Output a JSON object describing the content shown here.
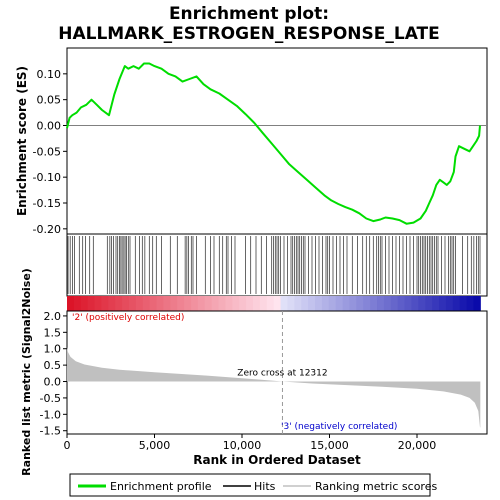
{
  "title_line1": "Enrichment plot:",
  "title_line2": "HALLMARK_ESTROGEN_RESPONSE_LATE",
  "colors": {
    "enrichment": "#00dd00",
    "hits": "#000000",
    "metric_fill": "#c0c0c0",
    "zero_line": "#808080",
    "pos_text": "#dd0000",
    "neg_text": "#0000cc"
  },
  "chart_data": [
    {
      "type": "line",
      "name": "enrichment-profile",
      "ylabel": "Enrichment score (ES)",
      "xlim": [
        0,
        24000
      ],
      "ylim": [
        -0.21,
        0.15
      ],
      "yticks": [
        0.1,
        0.05,
        0.0,
        -0.05,
        -0.1,
        -0.15,
        -0.2
      ],
      "ytick_labels": [
        "0.10",
        "0.05",
        "0.00",
        "-0.05",
        "-0.10",
        "-0.15",
        "-0.20"
      ],
      "grid": false,
      "x": [
        0,
        150,
        300,
        550,
        800,
        1100,
        1400,
        1700,
        2000,
        2400,
        2700,
        3000,
        3300,
        3500,
        3800,
        4100,
        4400,
        4700,
        5000,
        5400,
        5800,
        6200,
        6600,
        7000,
        7400,
        7800,
        8200,
        8700,
        9200,
        9700,
        10200,
        10700,
        11200,
        11700,
        12200,
        12700,
        13200,
        13700,
        14200,
        14700,
        15100,
        15500,
        15900,
        16300,
        16700,
        17100,
        17500,
        17900,
        18200,
        18600,
        19000,
        19400,
        19800,
        20200,
        20500,
        20700,
        20900,
        21100,
        21300,
        21500,
        21700,
        21900,
        22100,
        22200,
        22400,
        22700,
        23000,
        23200,
        23400,
        23550,
        23600
      ],
      "y": [
        -0.005,
        0.015,
        0.02,
        0.025,
        0.035,
        0.04,
        0.05,
        0.04,
        0.03,
        0.02,
        0.06,
        0.09,
        0.115,
        0.11,
        0.115,
        0.11,
        0.12,
        0.12,
        0.115,
        0.11,
        0.1,
        0.095,
        0.085,
        0.09,
        0.095,
        0.08,
        0.07,
        0.062,
        0.05,
        0.038,
        0.022,
        0.005,
        -0.015,
        -0.035,
        -0.055,
        -0.075,
        -0.09,
        -0.105,
        -0.12,
        -0.135,
        -0.145,
        -0.152,
        -0.158,
        -0.163,
        -0.17,
        -0.18,
        -0.185,
        -0.182,
        -0.178,
        -0.18,
        -0.183,
        -0.19,
        -0.188,
        -0.18,
        -0.165,
        -0.15,
        -0.135,
        -0.115,
        -0.105,
        -0.11,
        -0.115,
        -0.108,
        -0.09,
        -0.06,
        -0.04,
        -0.045,
        -0.05,
        -0.04,
        -0.03,
        -0.02,
        0.0
      ]
    },
    {
      "type": "hits",
      "name": "hits",
      "positions": [
        60,
        180,
        320,
        430,
        700,
        900,
        1050,
        1300,
        1500,
        2300,
        2450,
        2550,
        2650,
        2800,
        2900,
        3000,
        3080,
        3150,
        3250,
        3320,
        3400,
        3500,
        3600,
        3900,
        4150,
        4300,
        4450,
        4700,
        4900,
        5100,
        5400,
        5900,
        6300,
        6750,
        6850,
        6950,
        7100,
        7200,
        7400,
        7900,
        8200,
        8400,
        8700,
        8900,
        9100,
        9200,
        9400,
        9600,
        10200,
        10500,
        10800,
        11100,
        11400,
        11700,
        11800,
        11900,
        12000,
        12100,
        12200,
        12400,
        12600,
        12800,
        12900,
        13000,
        13100,
        13200,
        13300,
        13400,
        13500,
        13600,
        13800,
        14000,
        14200,
        14400,
        14600,
        14800,
        14900,
        15000,
        15200,
        15400,
        15600,
        15800,
        16000,
        16300,
        16600,
        16900,
        17100,
        17300,
        17500,
        17700,
        17800,
        17900,
        18000,
        18200,
        18400,
        18600,
        18800,
        19000,
        19200,
        19400,
        19600,
        19800,
        20000,
        20100,
        20200,
        20300,
        20400,
        20500,
        20600,
        20700,
        20800,
        20900,
        21000,
        21100,
        21200,
        21400,
        21600,
        21800,
        21900,
        22000,
        22100,
        22200,
        22600,
        22900,
        23100,
        23250,
        23400,
        23500,
        23600
      ]
    },
    {
      "type": "area",
      "name": "ranked-list-metric",
      "ylabel": "Ranked list metric (Signal2Noise)",
      "xlabel": "Rank in Ordered Dataset",
      "xlim": [
        0,
        24000
      ],
      "ylim": [
        -1.6,
        2.15
      ],
      "xticks": [
        0,
        5000,
        10000,
        15000,
        20000
      ],
      "xtick_labels": [
        "0",
        "5,000",
        "10,000",
        "15,000",
        "20,000"
      ],
      "yticks": [
        2.0,
        1.5,
        1.0,
        0.5,
        0.0,
        -0.5,
        -1.0,
        -1.5
      ],
      "ytick_labels": [
        "2.0",
        "1.5",
        "1.0",
        "0.5",
        "0.0",
        "-0.5",
        "-1.0",
        "-1.5"
      ],
      "x": [
        0,
        50,
        200,
        500,
        1000,
        2000,
        3000,
        5000,
        8000,
        10000,
        12312,
        14000,
        16000,
        18000,
        20000,
        21500,
        22500,
        23000,
        23300,
        23500,
        23600,
        23620
      ],
      "values": [
        1.05,
        0.9,
        0.75,
        0.62,
        0.52,
        0.42,
        0.36,
        0.28,
        0.18,
        0.1,
        0.0,
        -0.06,
        -0.11,
        -0.16,
        -0.22,
        -0.3,
        -0.4,
        -0.5,
        -0.65,
        -0.9,
        -1.4,
        -1.4
      ],
      "zero_cross_label": "Zero cross at 12312",
      "zero_cross": 12312,
      "pos_label": "'2' (positively correlated)",
      "neg_label": "'3' (negatively correlated)"
    }
  ],
  "legend": {
    "items": [
      {
        "label": "Enrichment profile",
        "color": "#00dd00"
      },
      {
        "label": "Hits",
        "color": "#000000"
      },
      {
        "label": "Ranking metric scores",
        "color": "#c0c0c0"
      }
    ]
  }
}
